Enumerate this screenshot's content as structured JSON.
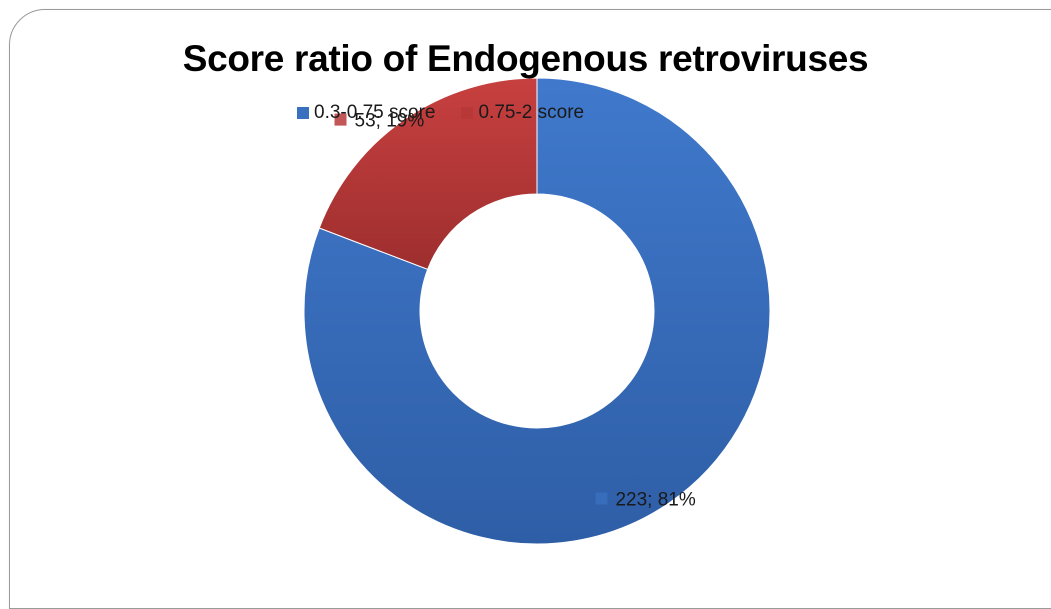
{
  "chart_data": {
    "type": "donut",
    "title": "Score ratio of Endogenous retroviruses",
    "categories": [
      "0.3-0.75 score",
      "0.75-2 score"
    ],
    "values": [
      223,
      53
    ],
    "percentages": [
      81,
      19
    ],
    "data_labels": [
      "223; 81%",
      "53; 19%"
    ],
    "colors": [
      "#3A70C0",
      "#B83838"
    ],
    "legend_position": "top"
  }
}
